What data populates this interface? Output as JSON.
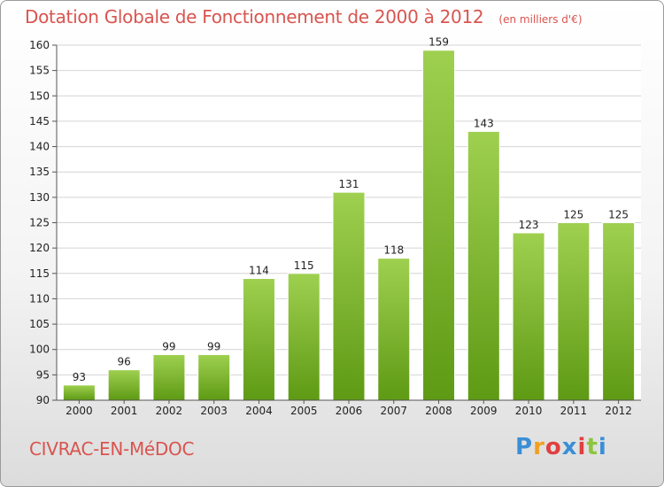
{
  "header": {
    "title": "Dotation Globale de Fonctionnement de 2000 à 2012",
    "subtitle": "(en milliers d'€)"
  },
  "footer": {
    "commune": "CIVRAC-EN-MéDOC",
    "logo_text": "Proxiti",
    "logo_colors": [
      "#3a8fd6",
      "#f0a020",
      "#e04040",
      "#3a8fd6",
      "#e04040",
      "#8cc63f",
      "#3a8fd6"
    ]
  },
  "chart_data": {
    "type": "bar",
    "categories": [
      "2000",
      "2001",
      "2002",
      "2003",
      "2004",
      "2005",
      "2006",
      "2007",
      "2008",
      "2009",
      "2010",
      "2011",
      "2012"
    ],
    "values": [
      93,
      96,
      99,
      99,
      114,
      115,
      131,
      118,
      159,
      143,
      123,
      125,
      125
    ],
    "title": "Dotation Globale de Fonctionnement de 2000 à 2012",
    "subtitle": "(en milliers d'€)",
    "xlabel": "",
    "ylabel": "",
    "ylim": [
      90,
      160
    ],
    "yticks": [
      90,
      95,
      100,
      105,
      110,
      115,
      120,
      125,
      130,
      135,
      140,
      145,
      150,
      155,
      160
    ],
    "grid": true,
    "data_labels": true,
    "bar_color_top": "#9fd050",
    "bar_color_bottom": "#5e9a14"
  }
}
